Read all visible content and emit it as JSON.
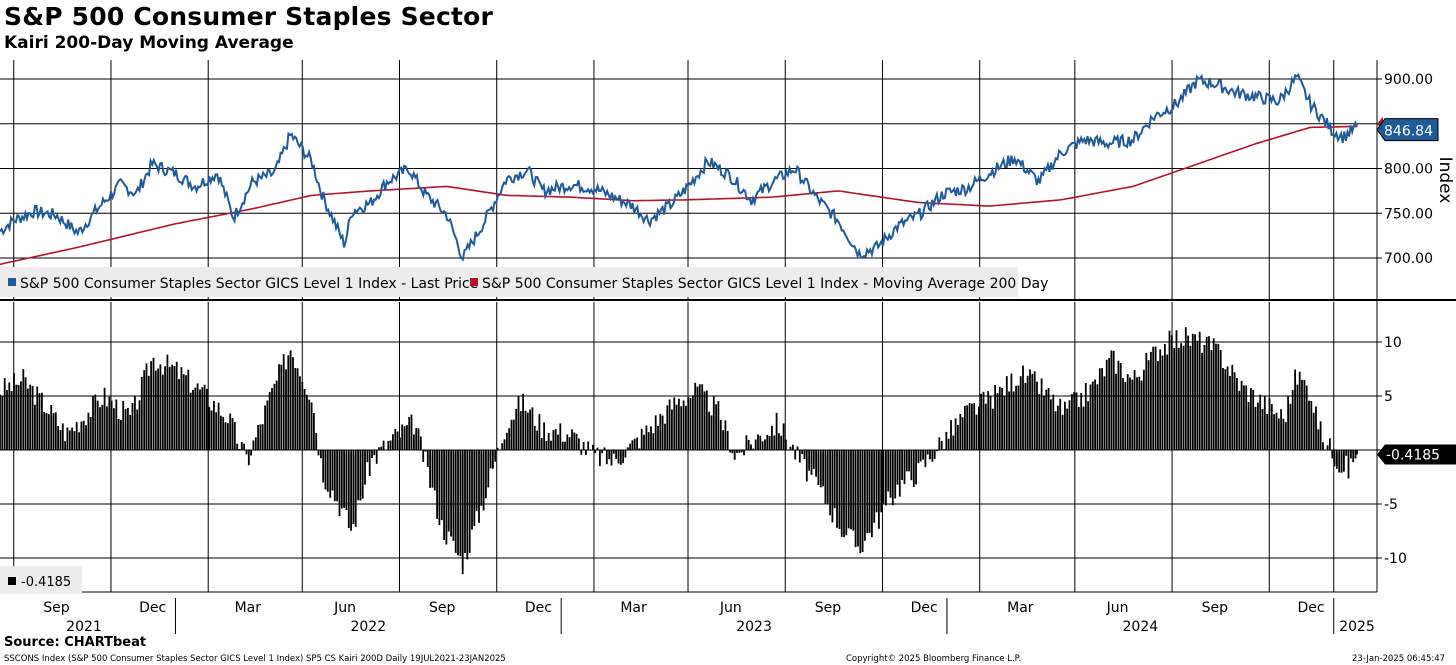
{
  "header": {
    "title": "S&P 500 Consumer Staples Sector",
    "subtitle": "Kairi 200-Day Moving Average"
  },
  "footer": {
    "source": "Source: CHARTbeat",
    "description": "SSCONS Index (S&P 500 Consumer Staples Sector GICS Level 1 Index) SP5 CS Kairi 200D  Daily 19JUL2021-23JAN2025",
    "copyright": "Copyright© 2025 Bloomberg Finance L.P.",
    "timestamp": "23-Jan-2025 06:45:47"
  },
  "colors": {
    "price": "#1f5a99",
    "ma": "#b0162b",
    "bars": "#000000",
    "grid": "#000000"
  },
  "chart_data": [
    {
      "type": "line",
      "title": "S&P 500 Consumer Staples Sector",
      "ylabel": "Index",
      "ylim": [
        650,
        912
      ],
      "yticks": [
        "900.00",
        "850.00",
        "800.00",
        "750.00",
        "700.00"
      ],
      "last_value_label": "846.84",
      "legend": "bottom-left",
      "grid": true,
      "series": [
        {
          "name": "S&P 500 Consumer Staples Sector GICS Level 1 Index - Last Price",
          "x": [
            "2021-07-19",
            "2021-08-01",
            "2021-08-20",
            "2021-09-10",
            "2021-10-01",
            "2021-10-20",
            "2021-11-10",
            "2021-11-25",
            "2021-12-10",
            "2021-12-31",
            "2022-01-20",
            "2022-02-10",
            "2022-02-25",
            "2022-03-15",
            "2022-04-05",
            "2022-04-20",
            "2022-05-10",
            "2022-05-20",
            "2022-06-10",
            "2022-06-17",
            "2022-07-05",
            "2022-07-20",
            "2022-08-10",
            "2022-08-25",
            "2022-09-15",
            "2022-09-30",
            "2022-10-20",
            "2022-11-10",
            "2022-11-30",
            "2022-12-15",
            "2023-01-10",
            "2023-02-01",
            "2023-02-20",
            "2023-03-10",
            "2023-03-25",
            "2023-04-15",
            "2023-05-01",
            "2023-05-20",
            "2023-06-10",
            "2023-06-30",
            "2023-07-20",
            "2023-08-10",
            "2023-08-30",
            "2023-09-20",
            "2023-10-10",
            "2023-10-27",
            "2023-11-15",
            "2023-12-05",
            "2023-12-29",
            "2024-01-20",
            "2024-02-10",
            "2024-03-05",
            "2024-03-28",
            "2024-04-18",
            "2024-05-10",
            "2024-06-01",
            "2024-06-25",
            "2024-07-15",
            "2024-08-05",
            "2024-08-25",
            "2024-09-10",
            "2024-09-30",
            "2024-10-20",
            "2024-11-10",
            "2024-11-27",
            "2024-12-10",
            "2024-12-31",
            "2025-01-10",
            "2025-01-23"
          ],
          "values": [
            730,
            742,
            752,
            748,
            728,
            756,
            782,
            772,
            805,
            795,
            780,
            795,
            745,
            785,
            795,
            838,
            808,
            770,
            715,
            752,
            762,
            785,
            800,
            772,
            748,
            700,
            740,
            788,
            798,
            775,
            782,
            778,
            768,
            758,
            742,
            760,
            780,
            808,
            792,
            765,
            785,
            800,
            768,
            742,
            705,
            712,
            735,
            748,
            772,
            778,
            795,
            812,
            785,
            818,
            832,
            828,
            832,
            858,
            872,
            898,
            895,
            885,
            880,
            875,
            902,
            872,
            842,
            835,
            846.84
          ]
        },
        {
          "name": "S&P 500 Consumer Staples Sector GICS Level 1 Index - Moving Average 200 Day",
          "x": [
            "2021-07-19",
            "2021-10-01",
            "2021-12-31",
            "2022-03-15",
            "2022-05-10",
            "2022-07-05",
            "2022-09-15",
            "2022-11-10",
            "2023-01-10",
            "2023-03-10",
            "2023-05-01",
            "2023-07-20",
            "2023-09-20",
            "2023-12-05",
            "2024-02-10",
            "2024-04-18",
            "2024-06-25",
            "2024-08-25",
            "2024-10-20",
            "2024-12-10",
            "2025-01-23"
          ],
          "values": [
            693,
            712,
            738,
            755,
            770,
            775,
            780,
            770,
            768,
            764,
            765,
            768,
            775,
            762,
            758,
            765,
            780,
            805,
            828,
            846,
            847
          ]
        }
      ]
    },
    {
      "type": "bar",
      "title": "Kairi 200-Day Moving Average",
      "ylim": [
        -12,
        14
      ],
      "yticks": [
        "10",
        "5",
        "0",
        "-5",
        "-10"
      ],
      "last_value_label": "-0.4185",
      "legend_label": "-0.4185",
      "grid": true,
      "series": [
        {
          "name": "SP5 CS Kairi 200D",
          "x": [
            "2021-07-19",
            "2021-08-10",
            "2021-09-01",
            "2021-09-20",
            "2021-10-10",
            "2021-10-25",
            "2021-11-20",
            "2021-12-10",
            "2021-12-31",
            "2022-01-25",
            "2022-02-20",
            "2022-03-10",
            "2022-04-01",
            "2022-04-20",
            "2022-05-10",
            "2022-05-20",
            "2022-06-05",
            "2022-06-17",
            "2022-07-05",
            "2022-07-25",
            "2022-08-15",
            "2022-08-25",
            "2022-09-10",
            "2022-09-30",
            "2022-10-20",
            "2022-11-10",
            "2022-11-25",
            "2022-12-15",
            "2023-01-10",
            "2023-02-01",
            "2023-02-20",
            "2023-03-10",
            "2023-03-25",
            "2023-04-20",
            "2023-05-10",
            "2023-05-30",
            "2023-06-15",
            "2023-07-10",
            "2023-07-25",
            "2023-08-15",
            "2023-09-05",
            "2023-09-25",
            "2023-10-10",
            "2023-10-27",
            "2023-11-15",
            "2023-12-05",
            "2023-12-29",
            "2024-01-20",
            "2024-02-15",
            "2024-03-10",
            "2024-03-28",
            "2024-04-20",
            "2024-05-15",
            "2024-06-05",
            "2024-06-25",
            "2024-07-20",
            "2024-08-10",
            "2024-08-30",
            "2024-09-15",
            "2024-10-05",
            "2024-10-25",
            "2024-11-15",
            "2024-11-27",
            "2024-12-10",
            "2024-12-20",
            "2025-01-05",
            "2025-01-15",
            "2025-01-23"
          ],
          "values": [
            5.5,
            6.5,
            4.0,
            1.5,
            3.5,
            5.0,
            3.0,
            8.5,
            7.5,
            5.5,
            3.0,
            -1.0,
            5.0,
            9.5,
            5.0,
            -2.0,
            -5.0,
            -7.5,
            -1.0,
            1.0,
            2.5,
            -1.0,
            -7.0,
            -10.5,
            -4.5,
            2.5,
            4.5,
            2.0,
            1.5,
            -0.5,
            -1.0,
            0.5,
            2.0,
            4.5,
            5.5,
            3.5,
            -0.5,
            1.5,
            2.5,
            -1.0,
            -4.0,
            -7.5,
            -9.0,
            -6.5,
            -3.5,
            -2.0,
            1.0,
            3.5,
            5.0,
            7.0,
            6.0,
            3.5,
            5.5,
            8.5,
            6.5,
            9.5,
            10.5,
            10.0,
            9.0,
            6.0,
            4.5,
            3.0,
            7.0,
            5.5,
            1.5,
            -1.0,
            -1.8,
            -0.4185
          ]
        }
      ]
    }
  ],
  "axis": {
    "months": [
      "Sep",
      "Dec",
      "Mar",
      "Jun",
      "Sep",
      "Dec",
      "Mar",
      "Jun",
      "Sep",
      "Dec",
      "Mar",
      "Jun",
      "Sep",
      "Dec"
    ],
    "years": [
      "2021",
      "2022",
      "2023",
      "2024",
      "2025"
    ]
  }
}
